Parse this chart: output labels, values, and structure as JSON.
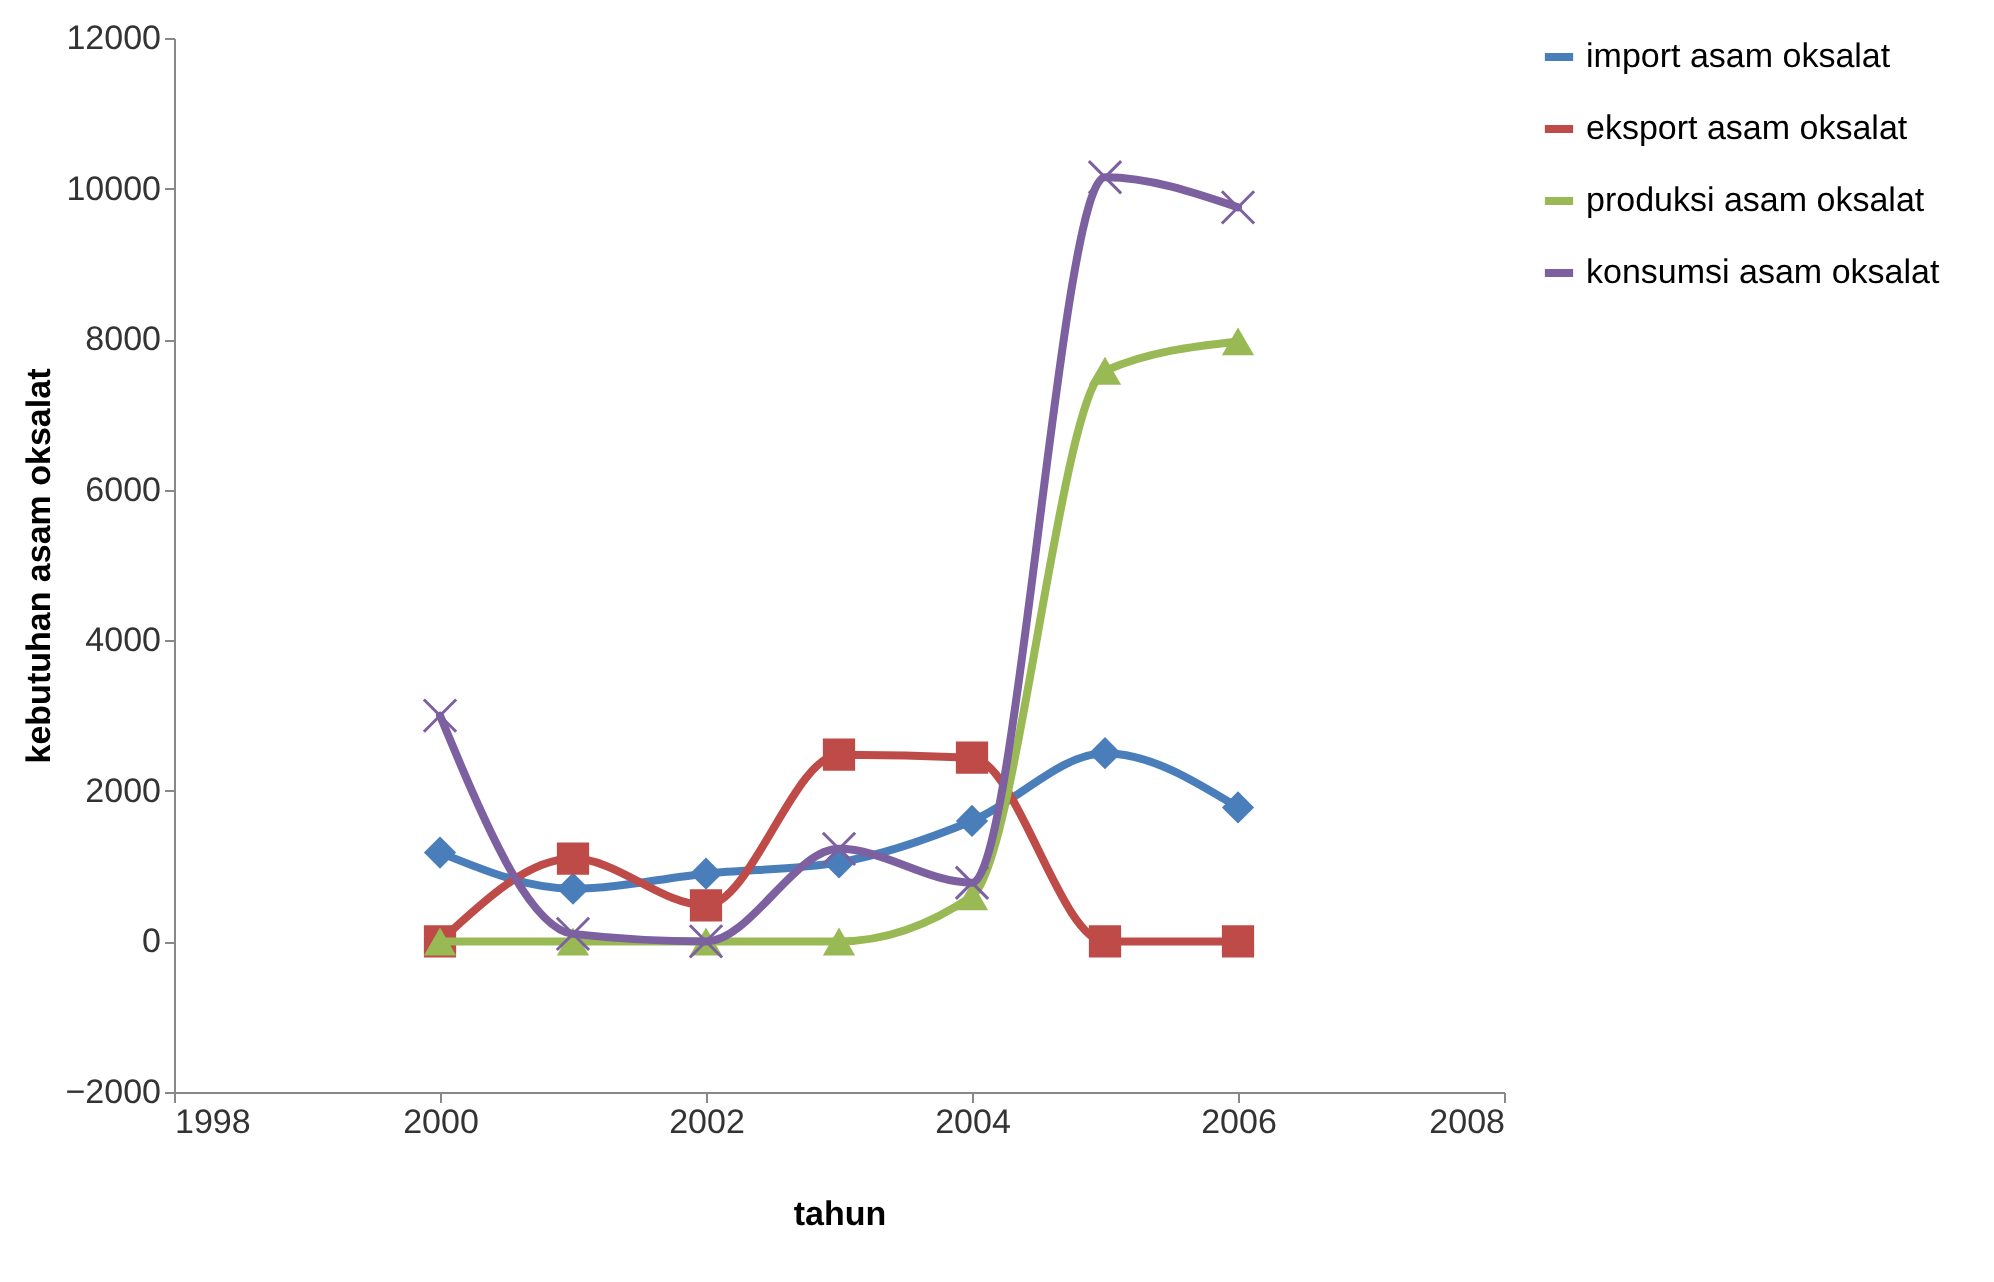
{
  "chart_data": {
    "type": "line",
    "xlabel": "tahun",
    "ylabel": "kebutuhan asam oksalat",
    "x": [
      2000,
      2001,
      2002,
      2003,
      2004,
      2005,
      2006
    ],
    "xlim": [
      1998,
      2008
    ],
    "xticks": [
      1998,
      2000,
      2002,
      2004,
      2006,
      2008
    ],
    "ylim": [
      -2000,
      12000
    ],
    "yticks": [
      -2000,
      0,
      2000,
      4000,
      6000,
      8000,
      10000,
      12000
    ],
    "grid": false,
    "legend": "right",
    "series": [
      {
        "name": "import asam oksalat",
        "color": "#4a7ebb",
        "marker": "diamond",
        "values": [
          1180,
          700,
          900,
          1050,
          1600,
          2500,
          1780
        ]
      },
      {
        "name": "eksport asam oksalat",
        "color": "#be4b48",
        "marker": "square",
        "values": [
          0,
          1100,
          480,
          2480,
          2440,
          0,
          0
        ]
      },
      {
        "name": "produksi asam oksalat",
        "color": "#98b954",
        "marker": "triangle",
        "values": [
          0,
          0,
          0,
          0,
          600,
          7580,
          7970
        ]
      },
      {
        "name": "konsumsi asam oksalat",
        "color": "#7d60a0",
        "marker": "cross",
        "values": [
          3000,
          100,
          0,
          1230,
          780,
          10150,
          9750
        ]
      }
    ]
  }
}
